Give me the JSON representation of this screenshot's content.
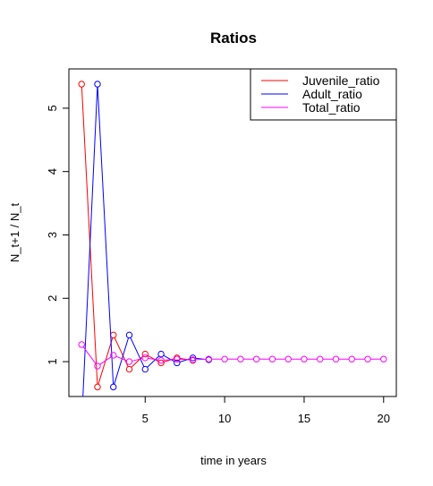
{
  "chart_data": {
    "type": "line",
    "title": "Ratios",
    "xlabel": "time in years",
    "ylabel": "N_t+1 / N_t",
    "xlim": [
      0.2,
      20.8
    ],
    "ylim": [
      0.45,
      5.62
    ],
    "x_ticks": [
      5,
      10,
      15,
      20
    ],
    "y_ticks": [
      1,
      2,
      3,
      4,
      5
    ],
    "grid": false,
    "legend_position": "top-right",
    "series": [
      {
        "name": "Juvenile_ratio",
        "color": "#ff0000",
        "x": [
          1,
          2,
          3,
          4,
          5,
          6,
          7,
          8
        ],
        "y": [
          5.38,
          0.6,
          1.42,
          0.88,
          1.12,
          0.98,
          1.06,
          1.02
        ]
      },
      {
        "name": "Adult_ratio",
        "color": "#0000ff",
        "x": [
          1,
          2,
          3,
          4,
          5,
          6,
          7,
          8,
          9
        ],
        "y": [
          0.0,
          5.38,
          0.6,
          1.42,
          0.88,
          1.12,
          0.98,
          1.06,
          1.03
        ]
      },
      {
        "name": "Total_ratio",
        "color": "#ff00ff",
        "x": [
          1,
          2,
          3,
          4,
          5,
          6,
          7,
          8,
          9,
          10,
          11,
          12,
          13,
          14,
          15,
          16,
          17,
          18,
          19,
          20
        ],
        "y": [
          1.27,
          0.93,
          1.1,
          1.0,
          1.06,
          1.02,
          1.04,
          1.03,
          1.04,
          1.04,
          1.04,
          1.04,
          1.04,
          1.04,
          1.04,
          1.04,
          1.04,
          1.04,
          1.04,
          1.04
        ]
      }
    ]
  }
}
